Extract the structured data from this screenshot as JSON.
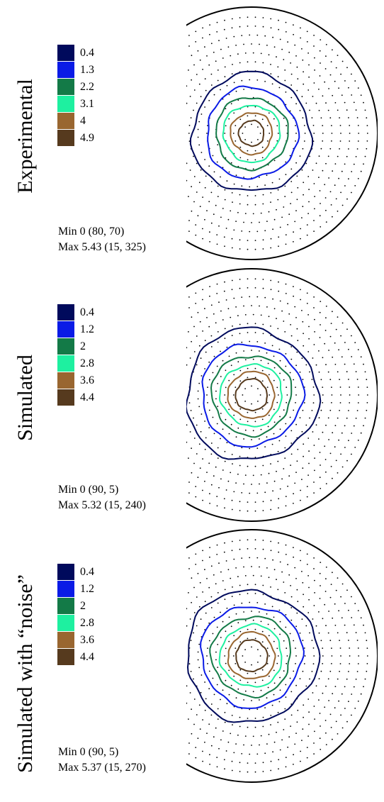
{
  "chart_data": [
    {
      "type": "contour",
      "title": "Experimental",
      "levels": [
        0.4,
        1.3,
        2.2,
        3.1,
        4,
        4.9
      ],
      "level_labels": [
        "0.4",
        "1.3",
        "2.2",
        "3.1",
        "4",
        "4.9"
      ],
      "colors": [
        "#000a5c",
        "#0a1be6",
        "#137a47",
        "#1ef0a0",
        "#996630",
        "#563a1e"
      ],
      "contour_radii_fraction": [
        0.47,
        0.36,
        0.285,
        0.225,
        0.165,
        0.1
      ],
      "min_text": "Min 0 (80, 70)",
      "max_text": "Max 5.43 (15, 325)",
      "grid": "dotted polar"
    },
    {
      "type": "contour",
      "title": "Simulated",
      "levels": [
        0.4,
        1.2,
        2,
        2.8,
        3.6,
        4.4
      ],
      "level_labels": [
        "0.4",
        "1.2",
        "2",
        "2.8",
        "3.6",
        "4.4"
      ],
      "colors": [
        "#000a5c",
        "#0a1be6",
        "#137a47",
        "#1ef0a0",
        "#996630",
        "#563a1e"
      ],
      "contour_radii_fraction": [
        0.52,
        0.4,
        0.315,
        0.245,
        0.185,
        0.125
      ],
      "min_text": "Min 0 (90, 5)",
      "max_text": "Max 5.32 (15, 240)",
      "grid": "dotted polar"
    },
    {
      "type": "contour",
      "title": "Simulated with “noise”",
      "levels": [
        0.4,
        1.2,
        2,
        2.8,
        3.6,
        4.4
      ],
      "level_labels": [
        "0.4",
        "1.2",
        "2",
        "2.8",
        "3.6",
        "4.4"
      ],
      "colors": [
        "#000a5c",
        "#0a1be6",
        "#137a47",
        "#1ef0a0",
        "#996630",
        "#563a1e"
      ],
      "contour_radii_fraction": [
        0.52,
        0.4,
        0.315,
        0.245,
        0.185,
        0.125
      ],
      "min_text": "Min 0 (90, 5)",
      "max_text": "Max 5.37 (15, 270)",
      "grid": "dotted polar"
    }
  ]
}
